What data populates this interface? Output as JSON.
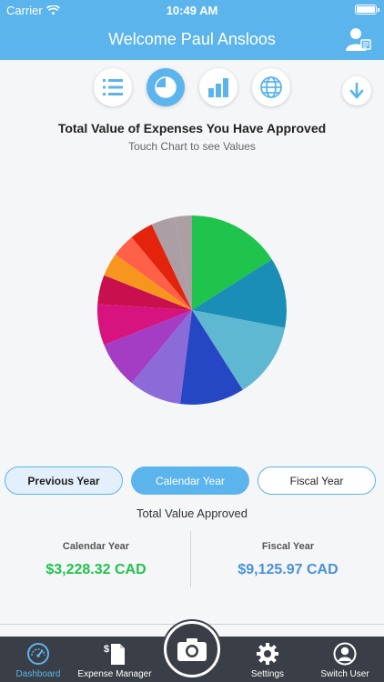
{
  "status": {
    "carrier": "Carrier",
    "time": "10:49 AM"
  },
  "header": {
    "title": "Welcome Paul Ansloos"
  },
  "view_modes": [
    {
      "name": "list",
      "icon": "list-icon",
      "active": false
    },
    {
      "name": "pie",
      "icon": "pie-chart-icon",
      "active": true
    },
    {
      "name": "bar",
      "icon": "bar-chart-icon",
      "active": false
    },
    {
      "name": "globe",
      "icon": "globe-icon",
      "active": false
    }
  ],
  "chart": {
    "title": "Total Value of Expenses You Have Approved",
    "subtitle": "Touch Chart to see Values"
  },
  "chart_data": {
    "type": "pie",
    "values": [
      16,
      12,
      13,
      11,
      9,
      8,
      7,
      5,
      4,
      4,
      4,
      4,
      3
    ],
    "colors": [
      "#1fc44c",
      "#1b8eb8",
      "#5fb8d2",
      "#2647c4",
      "#8a6bd8",
      "#a43cc4",
      "#d6137e",
      "#c8104f",
      "#f7961e",
      "#fe6148",
      "#e3230c",
      "#ab9ea4",
      "#ab9ea4"
    ]
  },
  "period_buttons": {
    "previous": "Previous Year",
    "calendar": "Calendar Year",
    "fiscal": "Fiscal Year"
  },
  "totals": {
    "label": "Total Value Approved",
    "calendar_label": "Calendar Year",
    "calendar_value": "$3,228.32 CAD",
    "fiscal_label": "Fiscal Year",
    "fiscal_value": "$9,125.97 CAD",
    "calendar_color": "#1fc44c",
    "fiscal_color": "#4a90d9"
  },
  "tabs": {
    "dashboard": "Dashboard",
    "expense_manager": "Expense Manager",
    "settings": "Settings",
    "switch_user": "Switch User"
  }
}
